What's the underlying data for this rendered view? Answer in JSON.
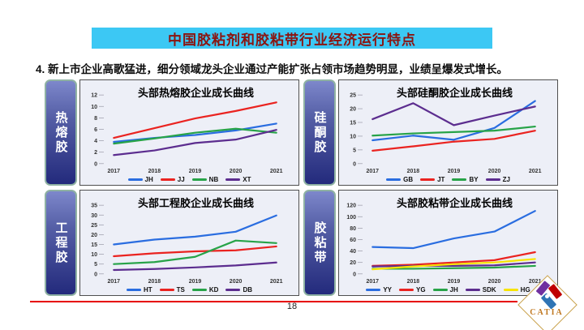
{
  "slide": {
    "title": "中国胶粘剂和胶粘带行业经济运行特点",
    "bullet": "4. 新上市企业高歌猛进，细分领域龙头企业通过产能扩张占领市场趋势明显，业绩呈爆发式增长。",
    "page_number": "18",
    "logo_text": "CATIA"
  },
  "colors": {
    "title_bar_bg": "#3cc8f4",
    "title_text": "#8b1410",
    "separator_red": "#e60000",
    "panel_bg": "#edeff7",
    "sidebar_top": "#7d87cb",
    "sidebar_bottom": "#232a7c"
  },
  "chart_data": [
    {
      "type": "line",
      "panel_label": "热熔胶",
      "title": "头部热熔胶企业成长曲线",
      "x": [
        "2017",
        "2018",
        "2019",
        "2020",
        "2021"
      ],
      "ylim": [
        0,
        12
      ],
      "ytick_step": 2,
      "grid": false,
      "legend_position": "bottom",
      "series": [
        {
          "name": "JH",
          "color": "#2a6de0",
          "values": [
            3.8,
            4.5,
            5.0,
            5.8,
            7.0
          ]
        },
        {
          "name": "JJ",
          "color": "#ea2320",
          "values": [
            4.5,
            6.2,
            7.9,
            9.2,
            10.7
          ]
        },
        {
          "name": "NB",
          "color": "#27a348",
          "values": [
            3.5,
            4.4,
            5.4,
            6.1,
            5.4
          ]
        },
        {
          "name": "XT",
          "color": "#5c2d8f",
          "values": [
            1.5,
            2.3,
            3.6,
            4.2,
            5.9
          ]
        }
      ]
    },
    {
      "type": "line",
      "panel_label": "硅酮胶",
      "title": "头部硅酮胶企业成长曲线",
      "x": [
        "2017",
        "2018",
        "2019",
        "2020",
        "2021"
      ],
      "ylim": [
        0,
        25
      ],
      "ytick_step": 5,
      "grid": false,
      "legend_position": "bottom",
      "series": [
        {
          "name": "GB",
          "color": "#2a6de0",
          "values": [
            8.5,
            10.2,
            8.7,
            13.0,
            22.8
          ]
        },
        {
          "name": "JT",
          "color": "#ea2320",
          "values": [
            4.7,
            6.3,
            8.0,
            9.0,
            12.0
          ]
        },
        {
          "name": "BY",
          "color": "#27a348",
          "values": [
            10.2,
            11.0,
            11.5,
            12.0,
            13.5
          ]
        },
        {
          "name": "ZJ",
          "color": "#5c2d8f",
          "values": [
            16.2,
            22.0,
            14.0,
            17.5,
            20.8
          ]
        }
      ]
    },
    {
      "type": "line",
      "panel_label": "工程胶",
      "title": "头部工程胶企业成长曲线",
      "x": [
        "2017",
        "2018",
        "2019",
        "2020",
        "2021"
      ],
      "ylim": [
        0,
        35
      ],
      "ytick_step": 5,
      "grid": false,
      "legend_position": "bottom",
      "series": [
        {
          "name": "HT",
          "color": "#2a6de0",
          "values": [
            15.0,
            17.5,
            19.0,
            21.5,
            29.8
          ]
        },
        {
          "name": "TS",
          "color": "#ea2320",
          "values": [
            9.0,
            10.5,
            11.5,
            12.0,
            14.0
          ]
        },
        {
          "name": "KD",
          "color": "#27a348",
          "values": [
            5.0,
            6.0,
            8.7,
            17.0,
            15.7
          ]
        },
        {
          "name": "DB",
          "color": "#5c2d8f",
          "values": [
            2.0,
            2.5,
            3.3,
            4.3,
            5.8
          ]
        }
      ]
    },
    {
      "type": "line",
      "panel_label": "胶粘带",
      "title": "头部胶粘带企业成长曲线",
      "x": [
        "2017",
        "2018",
        "2019",
        "2020",
        "2021"
      ],
      "ylim": [
        0,
        120
      ],
      "ytick_step": 20,
      "grid": false,
      "legend_position": "bottom",
      "series": [
        {
          "name": "YY",
          "color": "#2a6de0",
          "values": [
            47,
            45,
            62,
            74,
            110
          ]
        },
        {
          "name": "YG",
          "color": "#ea2320",
          "values": [
            14,
            16,
            20,
            24,
            38
          ]
        },
        {
          "name": "JH",
          "color": "#27a348",
          "values": [
            9,
            9,
            10,
            11,
            14
          ]
        },
        {
          "name": "SDK",
          "color": "#5c2d8f",
          "values": [
            13,
            14,
            14,
            15,
            20
          ]
        },
        {
          "name": "HG",
          "color": "#f7e400",
          "values": [
            8,
            13,
            17,
            20,
            26
          ]
        }
      ]
    }
  ]
}
